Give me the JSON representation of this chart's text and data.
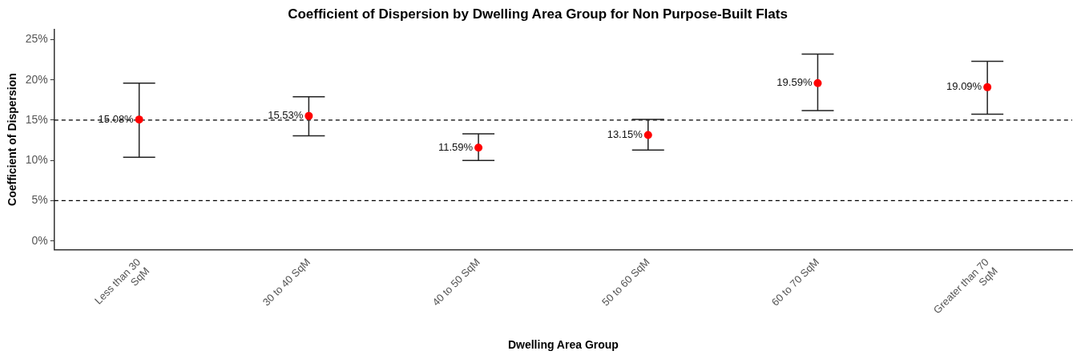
{
  "chart_data": {
    "type": "scatter",
    "title": "Coefficient of Dispersion by Dwelling Area Group for Non Purpose-Built Flats",
    "xlabel": "Dwelling Area Group",
    "ylabel": "Coefficient of Dispersion",
    "categories": [
      "Less than 30\nSqM",
      "30 to 40 SqM",
      "40 to 50 SqM",
      "50 to 60 SqM",
      "60 to 70 SqM",
      "Greater than 70\nSqM"
    ],
    "series": [
      {
        "color": "#ff0000",
        "values": [
          15.08,
          15.53,
          11.59,
          13.15,
          19.59,
          19.09
        ],
        "errors": [
          [
            10.4,
            19.6
          ],
          [
            13.05,
            17.9
          ],
          [
            10.0,
            13.3
          ],
          [
            11.3,
            15.1
          ],
          [
            16.2,
            23.2
          ],
          [
            15.75,
            22.3
          ]
        ],
        "value_labels": [
          "15.08%",
          "15.53%",
          "11.59%",
          "13.15%",
          "19.59%",
          "19.09%"
        ]
      }
    ],
    "ylim": [
      -1.1,
      26.3
    ],
    "yticks": [
      {
        "value": 0,
        "label": "0%"
      },
      {
        "value": 5,
        "label": "5%"
      },
      {
        "value": 10,
        "label": "10%"
      },
      {
        "value": 15,
        "label": "15%"
      },
      {
        "value": 20,
        "label": "20%"
      },
      {
        "value": 25,
        "label": "25%"
      }
    ],
    "ref_lines": [
      {
        "axis": "y",
        "value": 5,
        "line_style": "dashed",
        "color": "#000000"
      },
      {
        "axis": "y",
        "value": 15,
        "line_style": "dashed",
        "color": "#000000"
      }
    ],
    "grid": false,
    "legend": false,
    "marker": "circle"
  }
}
